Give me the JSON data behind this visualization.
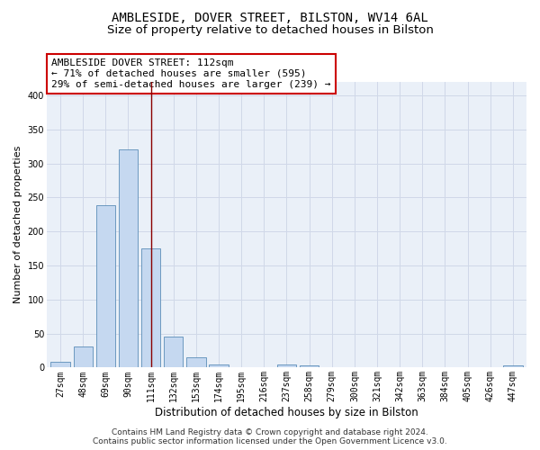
{
  "title": "AMBLESIDE, DOVER STREET, BILSTON, WV14 6AL",
  "subtitle": "Size of property relative to detached houses in Bilston",
  "xlabel": "Distribution of detached houses by size in Bilston",
  "ylabel": "Number of detached properties",
  "categories": [
    "27sqm",
    "48sqm",
    "69sqm",
    "90sqm",
    "111sqm",
    "132sqm",
    "153sqm",
    "174sqm",
    "195sqm",
    "216sqm",
    "237sqm",
    "258sqm",
    "279sqm",
    "300sqm",
    "321sqm",
    "342sqm",
    "363sqm",
    "384sqm",
    "405sqm",
    "426sqm",
    "447sqm"
  ],
  "values": [
    8,
    31,
    238,
    320,
    175,
    46,
    15,
    5,
    0,
    0,
    5,
    3,
    0,
    0,
    0,
    0,
    0,
    0,
    0,
    0,
    3
  ],
  "bar_color": "#c5d8f0",
  "bar_edge_color": "#5b8db8",
  "highlight_index": 4,
  "highlight_line_color": "#8b0000",
  "annotation_box_text": "AMBLESIDE DOVER STREET: 112sqm\n← 71% of detached houses are smaller (595)\n29% of semi-detached houses are larger (239) →",
  "annotation_box_color": "#ffffff",
  "annotation_box_edge_color": "#cc0000",
  "ylim": [
    0,
    420
  ],
  "yticks": [
    0,
    50,
    100,
    150,
    200,
    250,
    300,
    350,
    400
  ],
  "grid_color": "#d0d8e8",
  "background_color": "#eaf0f8",
  "footer_line1": "Contains HM Land Registry data © Crown copyright and database right 2024.",
  "footer_line2": "Contains public sector information licensed under the Open Government Licence v3.0.",
  "title_fontsize": 10,
  "subtitle_fontsize": 9.5,
  "xlabel_fontsize": 8.5,
  "ylabel_fontsize": 8,
  "tick_fontsize": 7,
  "footer_fontsize": 6.5,
  "annotation_fontsize": 8
}
